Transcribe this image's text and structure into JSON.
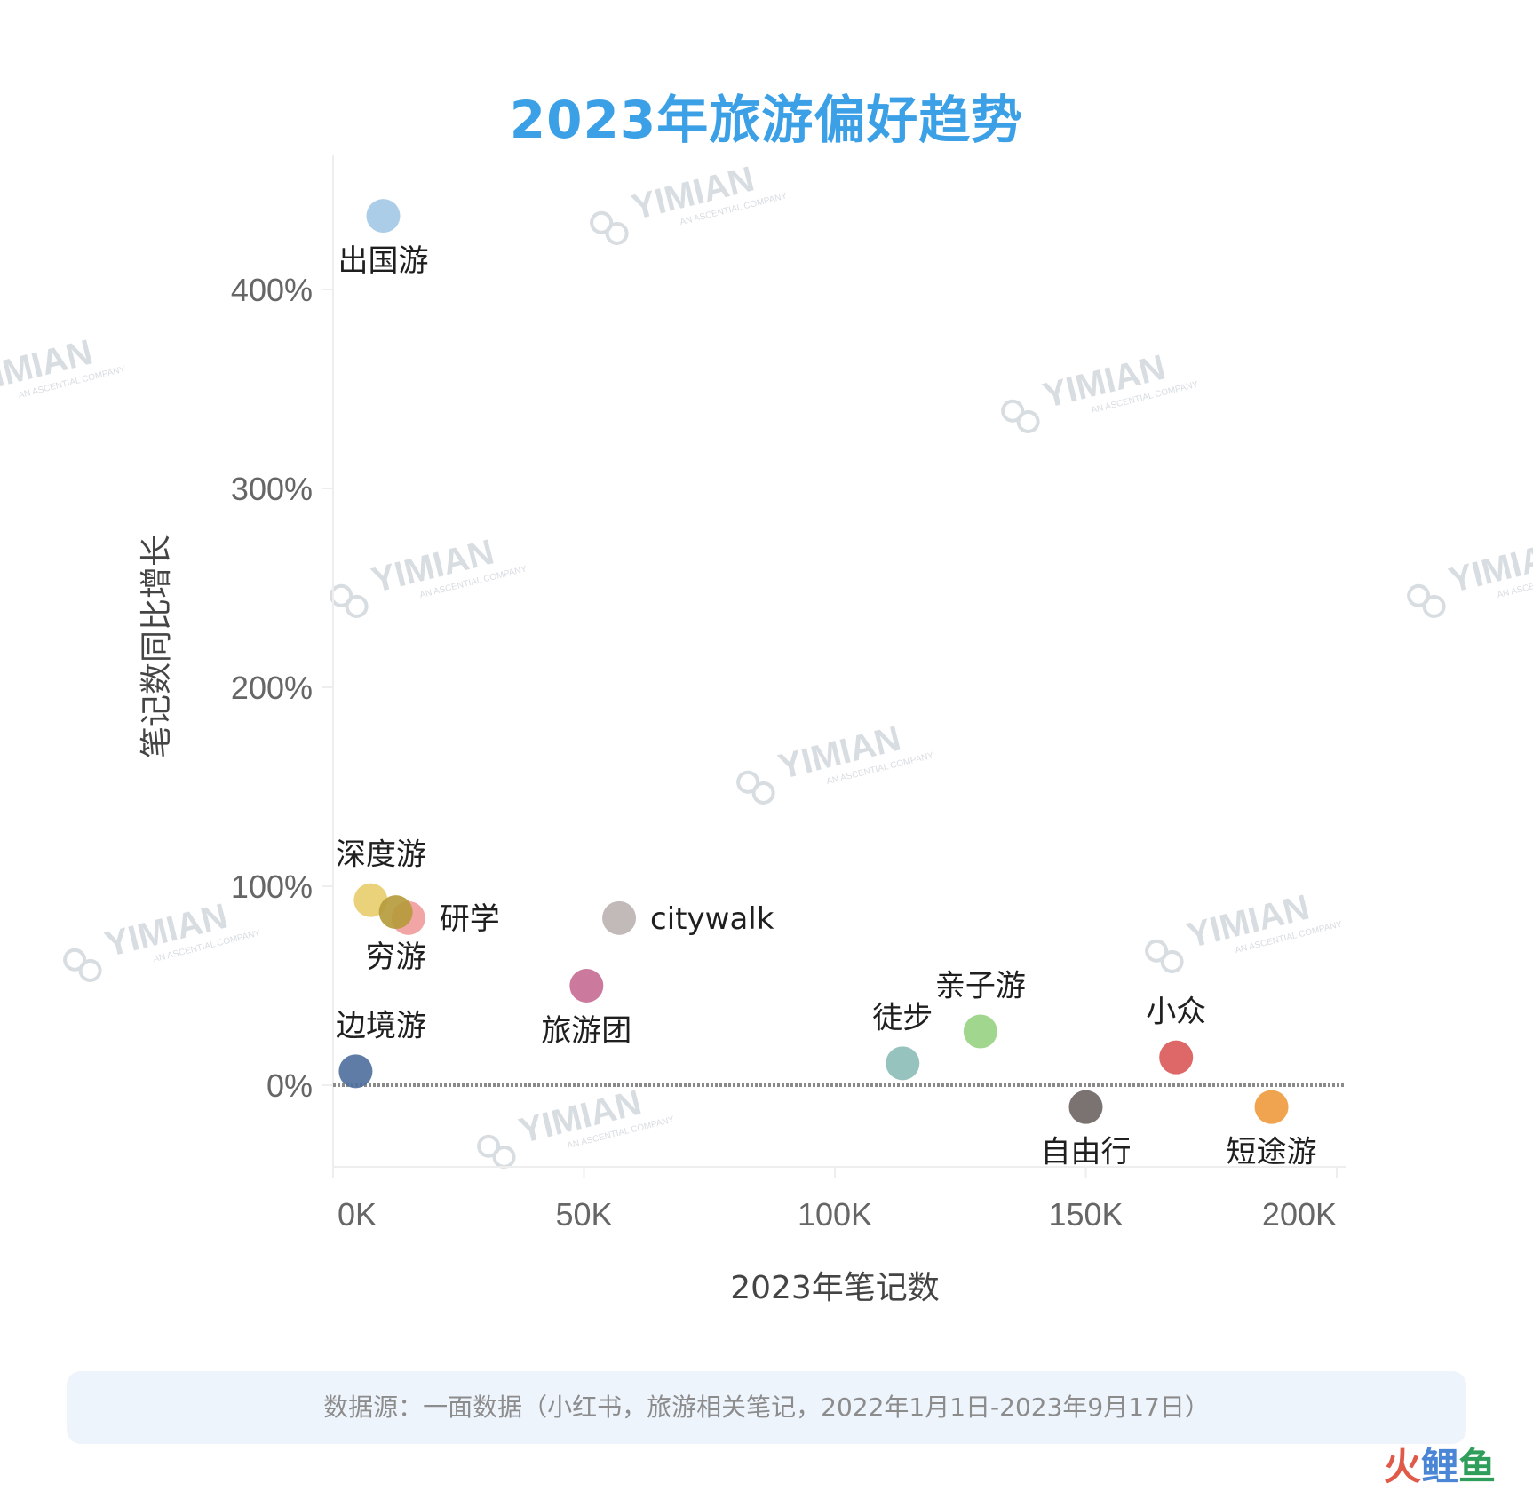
{
  "chart_data": {
    "type": "scatter",
    "title": "2023年旅游偏好趋势",
    "xlabel": "2023年笔记数",
    "ylabel": "笔记数同比增长",
    "xlim": [
      0,
      200000
    ],
    "ylim": [
      -40,
      470
    ],
    "x_ticks": [
      {
        "value": 0,
        "label": "0K"
      },
      {
        "value": 50000,
        "label": "50K"
      },
      {
        "value": 100000,
        "label": "100K"
      },
      {
        "value": 150000,
        "label": "150K"
      },
      {
        "value": 200000,
        "label": "200K"
      }
    ],
    "y_ticks": [
      {
        "value": 0,
        "label": "0%"
      },
      {
        "value": 100,
        "label": "100%"
      },
      {
        "value": 200,
        "label": "200%"
      },
      {
        "value": 300,
        "label": "300%"
      },
      {
        "value": 400,
        "label": "400%"
      }
    ],
    "reference_line": {
      "y": 0,
      "style": "dashed"
    },
    "grid": false,
    "legend": "none",
    "points": [
      {
        "label": "出国游",
        "x": 10000,
        "y": 437,
        "color": "#a3c8e6",
        "label_pos": "below"
      },
      {
        "label": "深度游",
        "x": 7500,
        "y": 93,
        "color": "#e8cd6c",
        "label_pos": "above"
      },
      {
        "label": "研学",
        "x": 15000,
        "y": 84,
        "color": "#ef9b9b",
        "label_pos": "right"
      },
      {
        "label": "穷游",
        "x": 12500,
        "y": 87,
        "color": "#b59a3a",
        "label_pos": "below"
      },
      {
        "label": "citywalk",
        "x": 57000,
        "y": 84,
        "color": "#bab3b0",
        "label_pos": "right"
      },
      {
        "label": "旅游团",
        "x": 50500,
        "y": 50,
        "color": "#c76a93",
        "label_pos": "below"
      },
      {
        "label": "边境游",
        "x": 4500,
        "y": 7,
        "color": "#4e6e9c",
        "label_pos": "above"
      },
      {
        "label": "徒步",
        "x": 113500,
        "y": 11,
        "color": "#8cbcb7",
        "label_pos": "above"
      },
      {
        "label": "亲子游",
        "x": 129000,
        "y": 27,
        "color": "#97d183",
        "label_pos": "above"
      },
      {
        "label": "自由行",
        "x": 150000,
        "y": -11,
        "color": "#6c6462",
        "label_pos": "below"
      },
      {
        "label": "小众",
        "x": 168000,
        "y": 14,
        "color": "#da5656",
        "label_pos": "above"
      },
      {
        "label": "短途游",
        "x": 187000,
        "y": -11,
        "color": "#ee9a3d",
        "label_pos": "below"
      }
    ]
  },
  "watermark": {
    "text": "YIMIAN",
    "subtext": "AN ASCENTIAL COMPANY"
  },
  "source_note": "数据源：一面数据（小红书，旅游相关笔记，2022年1月1日-2023年9月17日）",
  "brand": {
    "part1": "火",
    "part2": "鲤",
    "part3": "鱼"
  }
}
